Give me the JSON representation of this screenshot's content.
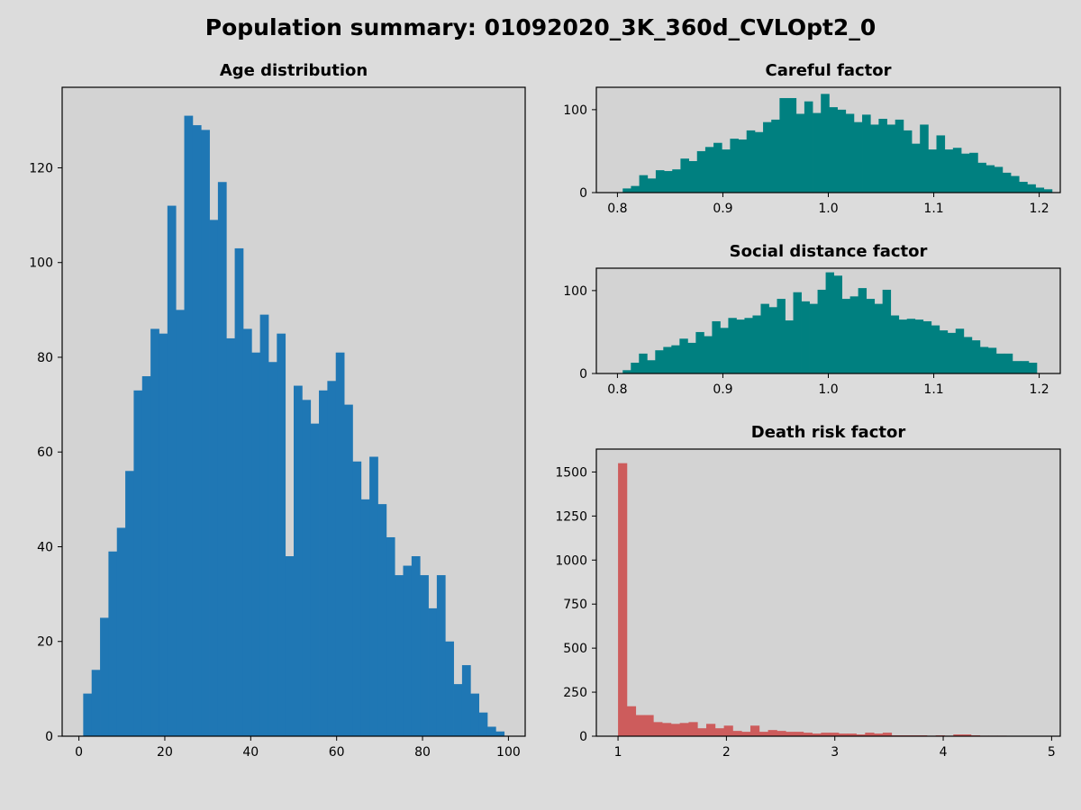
{
  "figure": {
    "suptitle": "Population summary: 01092020_3K_360d_CVLOpt2_0"
  },
  "chart_data": [
    {
      "type": "bar",
      "title": "Age distribution",
      "color": "#1f77b4",
      "xlim": [
        -3.9,
        103.9
      ],
      "ylim": [
        0,
        137
      ],
      "x_ticks": [
        0,
        20,
        40,
        60,
        80,
        100
      ],
      "y_ticks": [
        0,
        20,
        40,
        60,
        80,
        100,
        120
      ],
      "bin_start": 1,
      "bin_width": 1.96,
      "values": [
        9,
        14,
        25,
        39,
        44,
        56,
        73,
        76,
        86,
        85,
        112,
        90,
        131,
        129,
        128,
        109,
        117,
        84,
        103,
        86,
        81,
        89,
        79,
        85,
        38,
        74,
        71,
        66,
        73,
        75,
        81,
        70,
        58,
        50,
        59,
        49,
        42,
        34,
        36,
        38,
        34,
        27,
        34,
        20,
        11,
        15,
        9,
        5,
        2,
        1
      ]
    },
    {
      "type": "bar",
      "title": "Careful factor",
      "color": "#008080",
      "xlim": [
        0.78,
        1.22
      ],
      "ylim": [
        0,
        127
      ],
      "x_ticks": [
        "0.8",
        "0.9",
        "1.0",
        "1.1",
        "1.2"
      ],
      "y_ticks": [
        0,
        100
      ],
      "bin_start": 0.805,
      "bin_width": 0.00783,
      "values": [
        5,
        8,
        21,
        17,
        27,
        26,
        28,
        41,
        38,
        50,
        55,
        60,
        52,
        65,
        64,
        75,
        73,
        85,
        88,
        114,
        114,
        95,
        110,
        96,
        119,
        103,
        100,
        95,
        85,
        94,
        82,
        89,
        82,
        88,
        75,
        59,
        82,
        52,
        69,
        52,
        54,
        47,
        48,
        36,
        33,
        31,
        24,
        20,
        13,
        10,
        6,
        4
      ]
    },
    {
      "type": "bar",
      "title": "Social distance factor",
      "color": "#008080",
      "xlim": [
        0.78,
        1.22
      ],
      "ylim": [
        0,
        127
      ],
      "x_ticks": [
        "0.8",
        "0.9",
        "1.0",
        "1.1",
        "1.2"
      ],
      "y_ticks": [
        0,
        100
      ],
      "bin_start": 0.805,
      "bin_width": 0.0077,
      "values": [
        4,
        13,
        24,
        16,
        28,
        32,
        34,
        42,
        37,
        50,
        45,
        63,
        55,
        67,
        65,
        67,
        70,
        84,
        80,
        90,
        64,
        98,
        87,
        84,
        101,
        122,
        118,
        90,
        93,
        103,
        90,
        84,
        101,
        70,
        65,
        66,
        65,
        63,
        58,
        52,
        49,
        54,
        44,
        40,
        32,
        31,
        24,
        24,
        15,
        15,
        13
      ]
    },
    {
      "type": "bar",
      "title": "Death risk factor",
      "color": "#cd5c5c",
      "xlim": [
        0.8,
        5.08
      ],
      "ylim": [
        0,
        1630
      ],
      "x_ticks": [
        1,
        2,
        3,
        4,
        5
      ],
      "y_ticks": [
        0,
        250,
        500,
        750,
        1000,
        1250,
        1500
      ],
      "bin_start": 1.0,
      "bin_width": 0.0814,
      "values": [
        1550,
        170,
        120,
        120,
        80,
        75,
        70,
        75,
        80,
        45,
        70,
        45,
        60,
        30,
        25,
        60,
        25,
        35,
        30,
        25,
        25,
        20,
        15,
        20,
        20,
        15,
        15,
        10,
        20,
        15,
        20,
        5,
        5,
        5,
        5,
        3,
        5,
        3,
        10,
        10,
        5,
        3,
        3,
        3,
        2,
        2,
        2,
        2,
        2
      ]
    }
  ]
}
